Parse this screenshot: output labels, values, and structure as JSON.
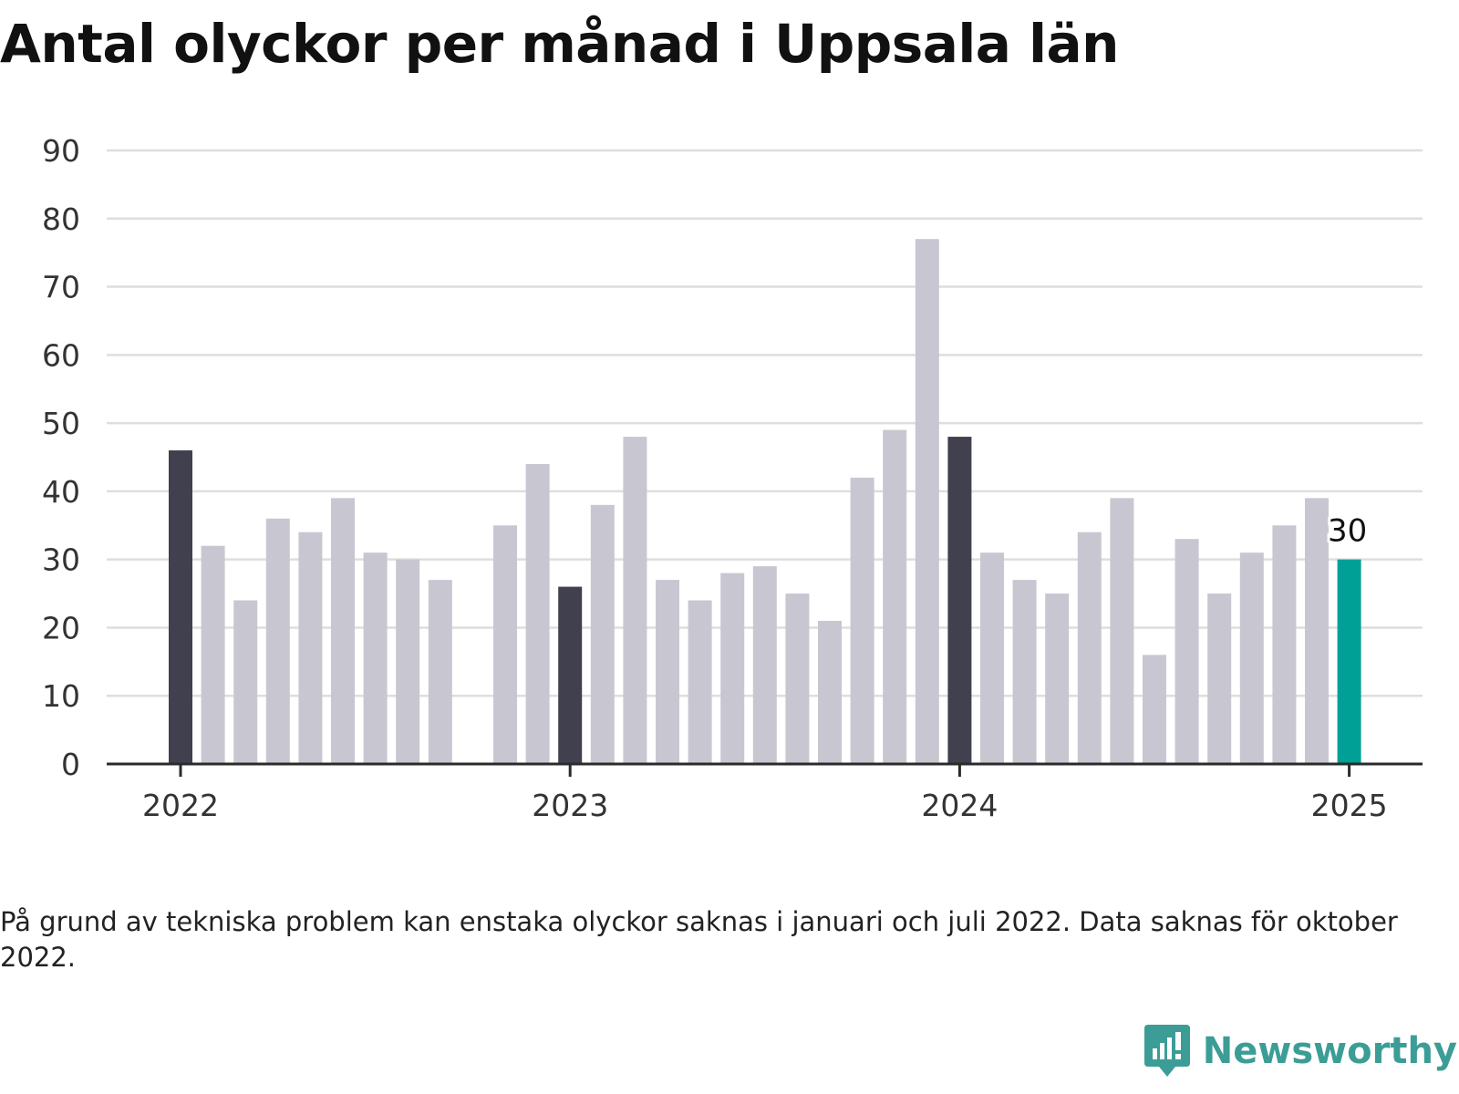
{
  "title": "Antal olyckor per månad i Uppsala län",
  "note": "På grund av tekniska problem kan enstaka olyckor saknas i januari och juli 2022. Data saknas för oktober 2022.",
  "brand": {
    "name": "Newsworthy",
    "icon": "newsworthy-logo-icon"
  },
  "colors": {
    "january": "#41404e",
    "default": "#c8c7d1",
    "latest": "#00a096",
    "grid": "#dedede",
    "axis": "#2b2b2b",
    "text": "#333333",
    "brand": "#3c9d96"
  },
  "chart_data": {
    "type": "bar",
    "title": "Antal olyckor per månad i Uppsala län",
    "xlabel": "",
    "ylabel": "",
    "ylim": [
      0,
      90
    ],
    "yticks": [
      0,
      10,
      20,
      30,
      40,
      50,
      60,
      70,
      80,
      90
    ],
    "xticks": [
      "2022",
      "2023",
      "2024",
      "2025"
    ],
    "grid": true,
    "categories": [
      "2022-01",
      "2022-02",
      "2022-03",
      "2022-04",
      "2022-05",
      "2022-06",
      "2022-07",
      "2022-08",
      "2022-09",
      "2022-10",
      "2022-11",
      "2022-12",
      "2023-01",
      "2023-02",
      "2023-03",
      "2023-04",
      "2023-05",
      "2023-06",
      "2023-07",
      "2023-08",
      "2023-09",
      "2023-10",
      "2023-11",
      "2023-12",
      "2024-01",
      "2024-02",
      "2024-03",
      "2024-04",
      "2024-05",
      "2024-06",
      "2024-07",
      "2024-08",
      "2024-09",
      "2024-10",
      "2024-11",
      "2024-12",
      "2025-01"
    ],
    "values": [
      46,
      32,
      24,
      36,
      34,
      39,
      31,
      30,
      27,
      null,
      35,
      44,
      26,
      38,
      48,
      27,
      24,
      28,
      29,
      25,
      21,
      42,
      49,
      77,
      48,
      31,
      27,
      25,
      34,
      39,
      16,
      33,
      25,
      31,
      35,
      39,
      30
    ],
    "data_labels": [
      {
        "category": "2025-01",
        "text": "30"
      }
    ]
  }
}
